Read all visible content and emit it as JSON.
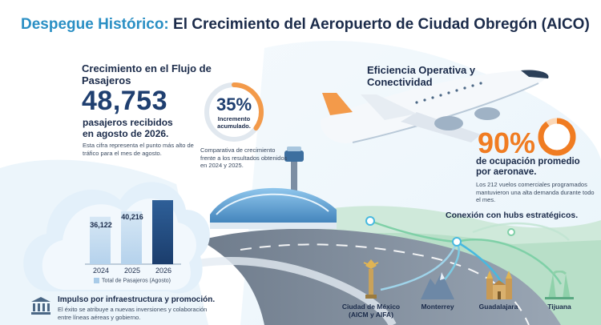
{
  "title": {
    "accent": "Despegue Histórico:",
    "rest": " El Crecimiento del Aeropuerto de Ciudad Obregón (AICO)"
  },
  "passengers": {
    "heading": "Crecimiento en el Flujo de Pasajeros",
    "number": "48,753",
    "subtitle": "pasajeros recibidos en agosto de 2026.",
    "note": "Esta cifra representa el punto más alto de tráfico para el mes de agosto."
  },
  "growth": {
    "percent": "35%",
    "label": "Incremento acumulado.",
    "percent_value": 35,
    "note": "Comparativa de crecimiento frente a los resultados obtenidos en 2024 y 2025."
  },
  "chart_data": {
    "type": "bar",
    "categories": [
      "2024",
      "2025",
      "2026"
    ],
    "values": [
      36122,
      40216,
      48753
    ],
    "value_labels": [
      "36,122",
      "40,216",
      ""
    ],
    "legend": "Total de Pasajeros (Agosto)",
    "ylim": [
      0,
      50000
    ]
  },
  "infrastructure": {
    "heading": "Impulso por infraestructura y promoción.",
    "text": "El éxito se atribuye a nuevas inversiones y colaboración entre líneas aéreas y gobierno.",
    "icon": "bank-icon"
  },
  "efficiency": {
    "heading": "Eficiencia Operativa y Conectividad",
    "percent": "90%",
    "percent_value": 90,
    "subtitle": "de ocupación promedio por aeronave.",
    "note": "Los 212 vuelos comerciales programados mantuvieron una alta demanda durante todo el mes."
  },
  "hubs": {
    "heading": "Conexión con hubs estratégicos.",
    "items": [
      {
        "label": "Ciudad de México (AICM y AIFA)",
        "icon": "angel-monument-icon"
      },
      {
        "label": "Monterrey",
        "icon": "mountain-icon"
      },
      {
        "label": "Guadalajara",
        "icon": "cathedral-icon"
      },
      {
        "label": "Tijuana",
        "icon": "arch-icon"
      }
    ]
  },
  "colors": {
    "accent_blue": "#2a8fc4",
    "navy": "#1f3f70",
    "orange": "#f07c22",
    "green": "#4bbf8a"
  }
}
